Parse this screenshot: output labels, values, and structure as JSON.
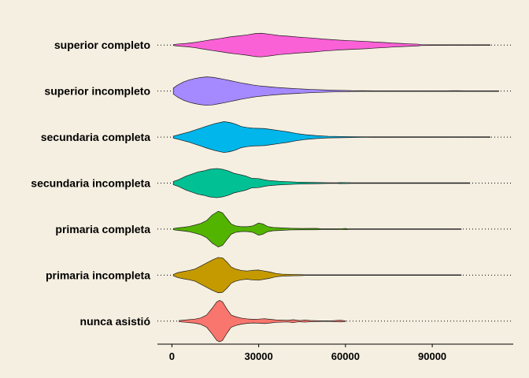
{
  "chart_data": {
    "type": "violin",
    "orientation": "horizontal",
    "title": "",
    "xlabel": "",
    "ylabel": "",
    "xlim": [
      -5000,
      118000
    ],
    "x_ticks": [
      0,
      30000,
      60000,
      90000
    ],
    "x_tick_labels": [
      "0",
      "30000",
      "60000",
      "90000"
    ],
    "grid": "dotted horizontal line per category",
    "legend": "none",
    "background": "#f5efe1",
    "categories": [
      "nunca asistió",
      "primaria incompleta",
      "primaria completa",
      "secundaria incompleta",
      "secundaria completa",
      "superior incompleto",
      "superior completo"
    ],
    "series": [
      {
        "category": "nunca asistió",
        "color": "#f8766d",
        "min": 2500,
        "max": 60000,
        "density": [
          [
            2500,
            0.3
          ],
          [
            5000,
            0.6
          ],
          [
            8000,
            1.0
          ],
          [
            10000,
            1.6
          ],
          [
            12000,
            3.0
          ],
          [
            14000,
            6.5
          ],
          [
            15500,
            9.5
          ],
          [
            16500,
            10.2
          ],
          [
            17500,
            9.5
          ],
          [
            19000,
            6.0
          ],
          [
            20500,
            3.0
          ],
          [
            22000,
            2.2
          ],
          [
            24000,
            1.5
          ],
          [
            26000,
            1.1
          ],
          [
            28000,
            0.9
          ],
          [
            30000,
            1.0
          ],
          [
            32000,
            1.2
          ],
          [
            34000,
            0.9
          ],
          [
            36000,
            0.6
          ],
          [
            38000,
            0.5
          ],
          [
            40000,
            0.4
          ],
          [
            42000,
            0.7
          ],
          [
            44000,
            0.3
          ],
          [
            46000,
            0.5
          ],
          [
            48000,
            0.3
          ],
          [
            50000,
            0.2
          ],
          [
            52000,
            0.1
          ],
          [
            55000,
            0.08
          ],
          [
            57000,
            0.35
          ],
          [
            58500,
            0.4
          ],
          [
            60000,
            0.1
          ]
        ]
      },
      {
        "category": "primaria incompleta",
        "color": "#c49a00",
        "min": 500,
        "max": 100000,
        "density": [
          [
            500,
            0.3
          ],
          [
            2000,
            1.2
          ],
          [
            4000,
            1.8
          ],
          [
            6000,
            2.3
          ],
          [
            8000,
            3.0
          ],
          [
            10000,
            4.5
          ],
          [
            12000,
            6.0
          ],
          [
            14000,
            7.5
          ],
          [
            16000,
            8.7
          ],
          [
            17500,
            8.5
          ],
          [
            19000,
            6.5
          ],
          [
            20500,
            4.0
          ],
          [
            22000,
            3.0
          ],
          [
            24000,
            2.3
          ],
          [
            26000,
            2.0
          ],
          [
            28000,
            2.4
          ],
          [
            30000,
            2.5
          ],
          [
            32000,
            2.0
          ],
          [
            34000,
            1.5
          ],
          [
            36000,
            0.8
          ],
          [
            38000,
            0.5
          ],
          [
            40000,
            0.4
          ],
          [
            42000,
            0.3
          ],
          [
            44000,
            0.25
          ],
          [
            46000,
            0.1
          ],
          [
            50000,
            0.05
          ],
          [
            100000,
            0.05
          ]
        ]
      },
      {
        "category": "primaria completa",
        "color": "#53b400",
        "min": 500,
        "max": 100000,
        "density": [
          [
            500,
            0.3
          ],
          [
            2000,
            0.6
          ],
          [
            4000,
            0.9
          ],
          [
            6000,
            1.3
          ],
          [
            8000,
            2.0
          ],
          [
            10000,
            2.8
          ],
          [
            12000,
            4.2
          ],
          [
            14000,
            7.0
          ],
          [
            16000,
            8.8
          ],
          [
            17500,
            8.0
          ],
          [
            19000,
            5.2
          ],
          [
            20500,
            2.5
          ],
          [
            22000,
            1.6
          ],
          [
            24000,
            1.2
          ],
          [
            26000,
            1.2
          ],
          [
            28000,
            1.6
          ],
          [
            30000,
            3.0
          ],
          [
            31500,
            2.5
          ],
          [
            33000,
            1.3
          ],
          [
            35000,
            0.8
          ],
          [
            38000,
            0.6
          ],
          [
            41000,
            0.4
          ],
          [
            45000,
            0.3
          ],
          [
            50000,
            0.35
          ],
          [
            52000,
            0.1
          ],
          [
            59000,
            0.2
          ],
          [
            60000,
            0.3
          ],
          [
            61000,
            0.1
          ],
          [
            100000,
            0.05
          ]
        ]
      },
      {
        "category": "secundaria incompleta",
        "color": "#00c094",
        "min": 500,
        "max": 103000,
        "density": [
          [
            500,
            0.8
          ],
          [
            2000,
            1.5
          ],
          [
            3500,
            2.5
          ],
          [
            5000,
            3.5
          ],
          [
            7000,
            4.5
          ],
          [
            9000,
            5.5
          ],
          [
            11000,
            6.0
          ],
          [
            13000,
            6.8
          ],
          [
            15500,
            7.2
          ],
          [
            17500,
            6.8
          ],
          [
            19500,
            6.0
          ],
          [
            21500,
            4.8
          ],
          [
            23500,
            4.2
          ],
          [
            25500,
            3.5
          ],
          [
            27500,
            2.4
          ],
          [
            30000,
            2.2
          ],
          [
            32000,
            1.6
          ],
          [
            34000,
            1.2
          ],
          [
            37000,
            0.9
          ],
          [
            40000,
            0.7
          ],
          [
            43000,
            0.5
          ],
          [
            46000,
            0.4
          ],
          [
            50000,
            0.3
          ],
          [
            53000,
            0.2
          ],
          [
            55000,
            0.1
          ],
          [
            57000,
            0.15
          ],
          [
            58000,
            0.25
          ],
          [
            61000,
            0.2
          ],
          [
            62000,
            0.1
          ],
          [
            103000,
            0.05
          ]
        ]
      },
      {
        "category": "secundaria completa",
        "color": "#00b6eb",
        "min": 500,
        "max": 110000,
        "density": [
          [
            500,
            0.5
          ],
          [
            2000,
            1.0
          ],
          [
            4000,
            1.8
          ],
          [
            6000,
            2.5
          ],
          [
            8000,
            3.5
          ],
          [
            10000,
            4.4
          ],
          [
            12000,
            5.4
          ],
          [
            15000,
            6.7
          ],
          [
            18000,
            7.6
          ],
          [
            20000,
            7.2
          ],
          [
            22000,
            6.4
          ],
          [
            24000,
            5.2
          ],
          [
            26000,
            4.7
          ],
          [
            28000,
            4.4
          ],
          [
            30000,
            4.3
          ],
          [
            32000,
            4.2
          ],
          [
            34000,
            3.8
          ],
          [
            37000,
            3.2
          ],
          [
            40000,
            2.6
          ],
          [
            43000,
            1.8
          ],
          [
            46000,
            1.2
          ],
          [
            50000,
            0.7
          ],
          [
            54000,
            0.4
          ],
          [
            58000,
            0.3
          ],
          [
            62000,
            0.2
          ],
          [
            66000,
            0.15
          ],
          [
            70000,
            0.12
          ],
          [
            74000,
            0.1
          ],
          [
            78000,
            0.05
          ],
          [
            80000,
            0.12
          ],
          [
            82000,
            0.12
          ],
          [
            84000,
            0.05
          ],
          [
            110000,
            0.05
          ]
        ]
      },
      {
        "category": "superior incompleto",
        "color": "#a58aff",
        "min": 500,
        "max": 113000,
        "density": [
          [
            500,
            1.5
          ],
          [
            2000,
            3.0
          ],
          [
            4000,
            4.5
          ],
          [
            6000,
            5.5
          ],
          [
            8000,
            6.2
          ],
          [
            10000,
            6.7
          ],
          [
            12000,
            7.0
          ],
          [
            14000,
            6.8
          ],
          [
            16000,
            6.3
          ],
          [
            18000,
            5.8
          ],
          [
            20000,
            5.2
          ],
          [
            22000,
            4.6
          ],
          [
            24000,
            4.0
          ],
          [
            26000,
            3.5
          ],
          [
            28000,
            3.0
          ],
          [
            30000,
            2.6
          ],
          [
            33000,
            2.2
          ],
          [
            36000,
            1.8
          ],
          [
            40000,
            1.4
          ],
          [
            44000,
            1.1
          ],
          [
            48000,
            0.8
          ],
          [
            52000,
            0.6
          ],
          [
            56000,
            0.4
          ],
          [
            60000,
            0.3
          ],
          [
            62000,
            0.2
          ],
          [
            66000,
            0.15
          ],
          [
            70000,
            0.1
          ],
          [
            75000,
            0.1
          ],
          [
            80000,
            0.08
          ],
          [
            86000,
            0.05
          ],
          [
            90000,
            0.1
          ],
          [
            92000,
            0.1
          ],
          [
            95000,
            0.05
          ],
          [
            97000,
            0.15
          ],
          [
            99000,
            0.15
          ],
          [
            101000,
            0.05
          ],
          [
            113000,
            0.05
          ]
        ]
      },
      {
        "category": "superior completo",
        "color": "#fb61d7",
        "min": 500,
        "max": 110000,
        "density": [
          [
            500,
            0.2
          ],
          [
            2000,
            0.5
          ],
          [
            5000,
            0.8
          ],
          [
            8000,
            1.3
          ],
          [
            11000,
            2.0
          ],
          [
            14000,
            2.7
          ],
          [
            17000,
            3.3
          ],
          [
            20000,
            4.0
          ],
          [
            23000,
            4.5
          ],
          [
            26000,
            5.0
          ],
          [
            29000,
            5.7
          ],
          [
            31000,
            5.8
          ],
          [
            34000,
            5.3
          ],
          [
            37000,
            4.7
          ],
          [
            40000,
            4.4
          ],
          [
            43000,
            4.0
          ],
          [
            46000,
            3.7
          ],
          [
            49000,
            3.4
          ],
          [
            52000,
            3.0
          ],
          [
            55000,
            2.7
          ],
          [
            58000,
            2.4
          ],
          [
            61000,
            2.2
          ],
          [
            64000,
            2.0
          ],
          [
            67000,
            1.8
          ],
          [
            70000,
            1.5
          ],
          [
            73000,
            1.3
          ],
          [
            76000,
            1.0
          ],
          [
            79000,
            0.8
          ],
          [
            82000,
            0.6
          ],
          [
            85000,
            0.45
          ],
          [
            86000,
            0.2
          ],
          [
            90000,
            0.15
          ],
          [
            95000,
            0.12
          ],
          [
            100000,
            0.1
          ],
          [
            105000,
            0.08
          ],
          [
            110000,
            0.05
          ]
        ]
      }
    ]
  }
}
